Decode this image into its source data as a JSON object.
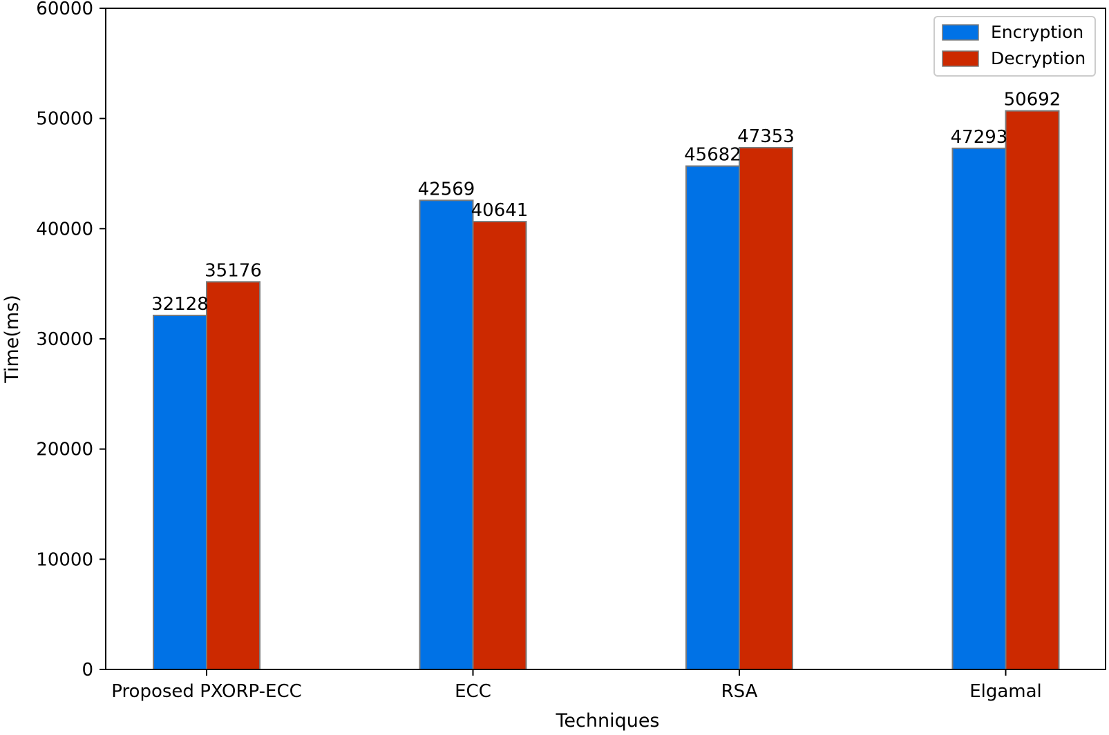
{
  "chart_data": {
    "type": "bar",
    "title": "",
    "xlabel": "Techniques",
    "ylabel": "Time(ms)",
    "categories": [
      "Proposed PXORP-ECC",
      "ECC",
      "RSA",
      "Elgamal"
    ],
    "series": [
      {
        "name": "Encryption",
        "values": [
          32128,
          42569,
          45682,
          47293
        ],
        "color": "#0072e6"
      },
      {
        "name": "Decryption",
        "values": [
          35176,
          40641,
          47353,
          50692
        ],
        "color": "#cc2900"
      }
    ],
    "ylim": [
      0,
      60000
    ],
    "yticks": [
      0,
      10000,
      20000,
      30000,
      40000,
      50000,
      60000
    ],
    "data_labels": true,
    "grid": false,
    "legend_position": "top-right",
    "edge_color": "#7a7a7a"
  }
}
